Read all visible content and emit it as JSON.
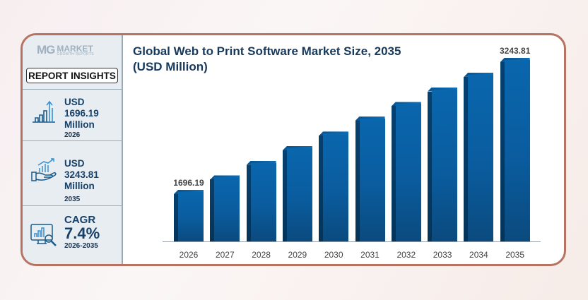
{
  "brand": {
    "logo_mark": "MG",
    "name": "MARKET",
    "tagline": "GROWTH REPORTS"
  },
  "sidebar": {
    "insights_label": "REPORT INSIGHTS",
    "kpis": [
      {
        "icon": "bar-growth-icon",
        "value": "USD 1696.19",
        "unit": "Million",
        "period": "2026"
      },
      {
        "icon": "hand-chart-icon",
        "value": "USD 3243.81",
        "unit": "Million",
        "period": "2035"
      },
      {
        "icon": "monitor-analytics-icon",
        "label": "CAGR",
        "value": "7.4%",
        "period": "2026-2035"
      }
    ]
  },
  "colors": {
    "bar": "#0a5c9e",
    "bar_side": "#053458",
    "title": "#17395c",
    "frame": "#b87262",
    "sidebar_bg": "#e7edf1"
  },
  "chart_data": {
    "type": "bar",
    "title": "Global Web to Print Software Market Size, 2035 (USD Million)",
    "xlabel": "",
    "ylabel": "USD Million",
    "categories": [
      "2026",
      "2027",
      "2028",
      "2029",
      "2030",
      "2031",
      "2032",
      "2033",
      "2034",
      "2035"
    ],
    "values": [
      1696.19,
      1866,
      2037,
      2209,
      2380,
      2556,
      2727,
      2900,
      3071,
      3243.81
    ],
    "data_labels": {
      "2026": "1696.19",
      "2035": "3243.81"
    },
    "grid": false,
    "legend": null
  }
}
